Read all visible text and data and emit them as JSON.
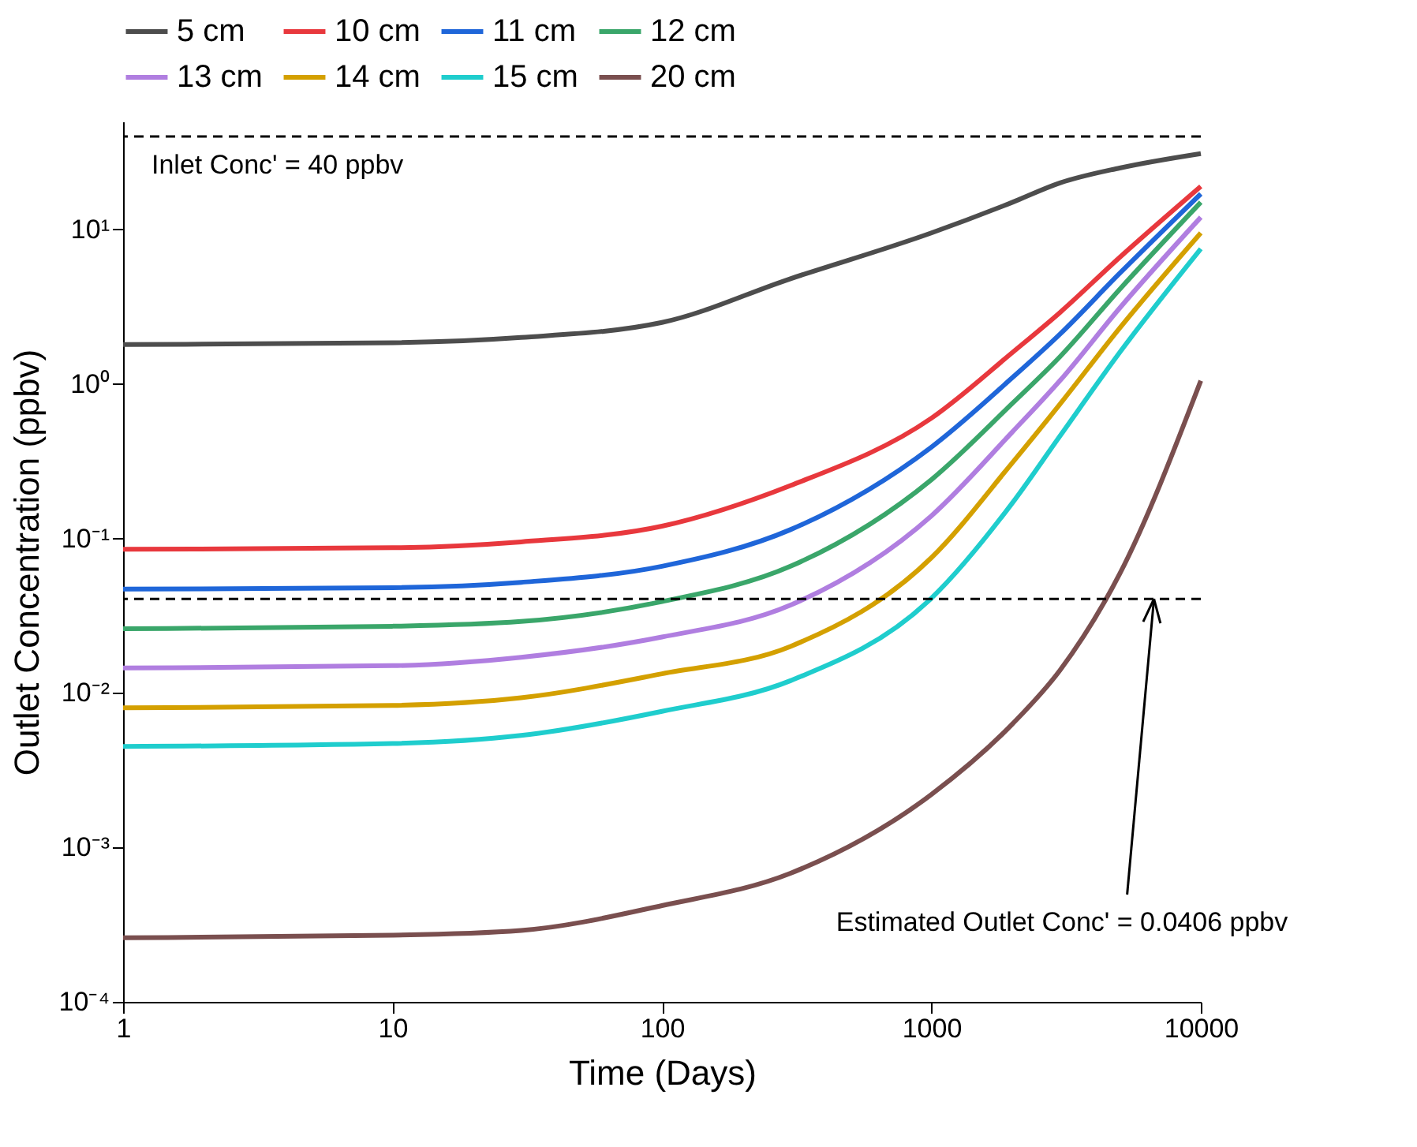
{
  "chart_data": {
    "type": "line",
    "xlabel": "Time (Days)",
    "ylabel": "Outlet Concentration (ppbv)",
    "x": [
      1,
      10,
      30,
      100,
      300,
      1000,
      2000,
      3000,
      5000,
      10000
    ],
    "series": [
      {
        "name": "5 cm",
        "color": "#4d4d4d",
        "values": [
          1.8,
          1.85,
          2.0,
          2.5,
          4.8,
          9.5,
          15,
          20,
          25,
          31
        ]
      },
      {
        "name": "10 cm",
        "color": "#e8383d",
        "values": [
          0.085,
          0.087,
          0.095,
          0.12,
          0.22,
          0.6,
          1.6,
          2.9,
          6.6,
          19
        ]
      },
      {
        "name": "11 cm",
        "color": "#1f66d9",
        "values": [
          0.047,
          0.048,
          0.052,
          0.066,
          0.114,
          0.39,
          1.1,
          2.1,
          5.2,
          17
        ]
      },
      {
        "name": "12 cm",
        "color": "#3aa66a",
        "values": [
          0.026,
          0.027,
          0.029,
          0.039,
          0.066,
          0.24,
          0.75,
          1.5,
          4.1,
          15
        ]
      },
      {
        "name": "13 cm",
        "color": "#b07ee0",
        "values": [
          0.0145,
          0.015,
          0.017,
          0.023,
          0.037,
          0.14,
          0.49,
          1.05,
          3.1,
          12
        ]
      },
      {
        "name": "14 cm",
        "color": "#d4a000",
        "values": [
          0.008,
          0.0083,
          0.0093,
          0.0133,
          0.02,
          0.075,
          0.31,
          0.74,
          2.3,
          9.5
        ]
      },
      {
        "name": "15 cm",
        "color": "#1fcdcd",
        "values": [
          0.0045,
          0.0047,
          0.0053,
          0.0076,
          0.012,
          0.041,
          0.17,
          0.46,
          1.6,
          7.5
        ]
      },
      {
        "name": "20 cm",
        "color": "#7a4f4f",
        "values": [
          0.00026,
          0.00027,
          0.00029,
          0.00042,
          0.00068,
          0.0022,
          0.0063,
          0.014,
          0.059,
          1.05
        ]
      }
    ],
    "xlim": [
      1,
      10000
    ],
    "xticks": [
      1,
      10,
      100,
      {
        "value": 1000,
        "label": "1000"
      },
      {
        "value": 10000,
        "label": "10000"
      }
    ],
    "ylim": [
      0.0001,
      50
    ],
    "yticks": [
      {
        "value": 0.0001,
        "label": "10⁻⁴"
      },
      {
        "value": 0.001,
        "label": "10⁻³"
      },
      {
        "value": 0.01,
        "label": "10⁻²"
      },
      {
        "value": 0.1,
        "label": "10⁻¹"
      },
      {
        "value": 1,
        "label": "10⁰"
      },
      {
        "value": 10,
        "label": "10¹"
      }
    ],
    "log": "xy",
    "grid": false,
    "legend": "top",
    "line_style": "solid",
    "marker": "none",
    "ref_lines": [
      {
        "axis": "y",
        "value": 40,
        "color": "#000000",
        "line_style": "dashed"
      },
      {
        "axis": "y",
        "value": 0.0406,
        "color": "#000000",
        "line_style": "dashed"
      }
    ],
    "annotations": [
      "Inlet Conc' = 40 ppbv",
      {
        "text": "Estimated Outlet Conc' = 0.0406 ppbv",
        "x": 6700,
        "y": 0.0406
      }
    ]
  }
}
